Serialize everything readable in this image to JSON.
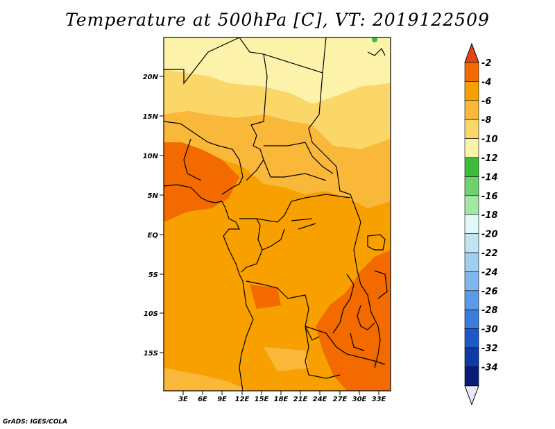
{
  "title": "Temperature at 500hPa [C], VT: 2019122509",
  "credit": "GrADS: IGES/COLA",
  "map": {
    "lat_labels": [
      "20N",
      "15N",
      "10N",
      "5N",
      "EQ",
      "5S",
      "10S",
      "15S"
    ],
    "lon_labels": [
      "3E",
      "6E",
      "9E",
      "12E",
      "15E",
      "18E",
      "21E",
      "24E",
      "27E",
      "30E",
      "33E"
    ]
  },
  "colorbar": {
    "labels": [
      "-2",
      "-4",
      "-6",
      "-8",
      "-10",
      "-12",
      "-14",
      "-16",
      "-18",
      "-20",
      "-22",
      "-24",
      "-26",
      "-28",
      "-30",
      "-32",
      "-34"
    ],
    "colors": [
      "#e8441a",
      "#f26a00",
      "#f7a000",
      "#f9b83a",
      "#fbd76a",
      "#fdf2aa",
      "#3cbe3c",
      "#6ed26e",
      "#a4e6a4",
      "#e0f8f8",
      "#c2e4f2",
      "#a0cef0",
      "#80b8ee",
      "#5a9ae6",
      "#3a7cdc",
      "#1e58c8",
      "#0e3aa8",
      "#0a1c78",
      "#e8e8fa"
    ]
  }
}
